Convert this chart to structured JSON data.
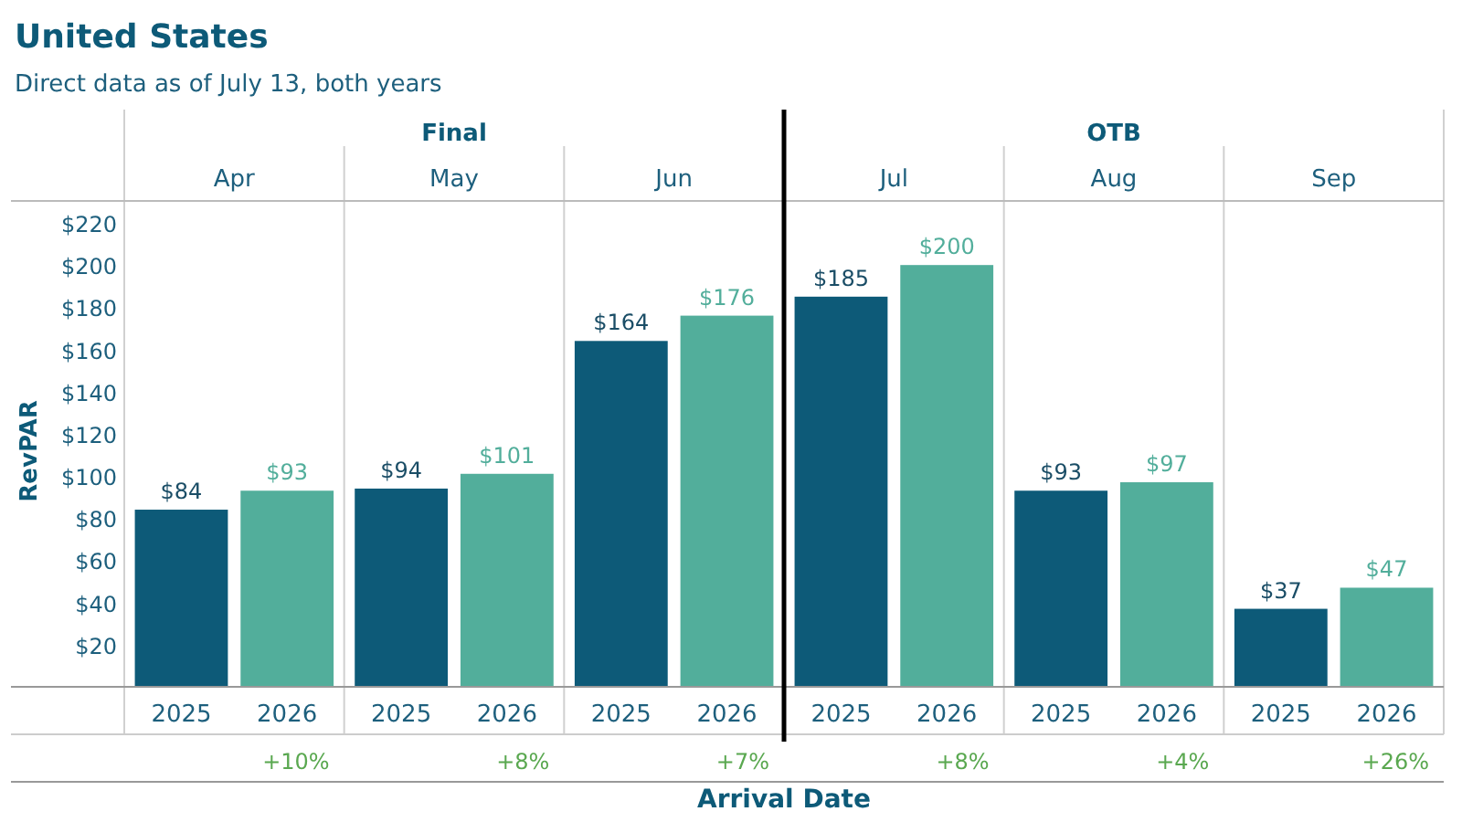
{
  "chart_data": {
    "type": "bar",
    "title": "United States",
    "subtitle": "Direct data as of July 13, both years",
    "xlabel": "Arrival Date",
    "ylabel": "RevPAR",
    "categories": [
      "Apr",
      "May",
      "Jun",
      "Jul",
      "Aug",
      "Sep"
    ],
    "series": [
      {
        "name": "2025",
        "color": "#0d5a78",
        "values": [
          84,
          94,
          164,
          185,
          93,
          37
        ],
        "value_labels": [
          "$84",
          "$94",
          "$164",
          "$185",
          "$93",
          "$37"
        ]
      },
      {
        "name": "2026",
        "color": "#52ae9b",
        "values": [
          93,
          101,
          176,
          200,
          97,
          47
        ],
        "value_labels": [
          "$93",
          "$101",
          "$176",
          "$200",
          "$97",
          "$47"
        ]
      }
    ],
    "ylim": [
      0,
      220
    ],
    "yticks": [
      {
        "value": 20,
        "label": "$20"
      },
      {
        "value": 40,
        "label": "$40"
      },
      {
        "value": 60,
        "label": "$60"
      },
      {
        "value": 80,
        "label": "$80"
      },
      {
        "value": 100,
        "label": "$100"
      },
      {
        "value": 120,
        "label": "$120"
      },
      {
        "value": 140,
        "label": "$140"
      },
      {
        "value": 160,
        "label": "$160"
      },
      {
        "value": 180,
        "label": "$180"
      },
      {
        "value": 200,
        "label": "$200"
      },
      {
        "value": 220,
        "label": "$220"
      }
    ],
    "ref_lines": [
      {
        "axis": "x",
        "value": "Jul",
        "color": "#000000"
      }
    ],
    "annotations": [
      "Final",
      "OTB",
      "+10%",
      "+8%",
      "+7%",
      "+8%",
      "+4%",
      "+26%"
    ]
  }
}
